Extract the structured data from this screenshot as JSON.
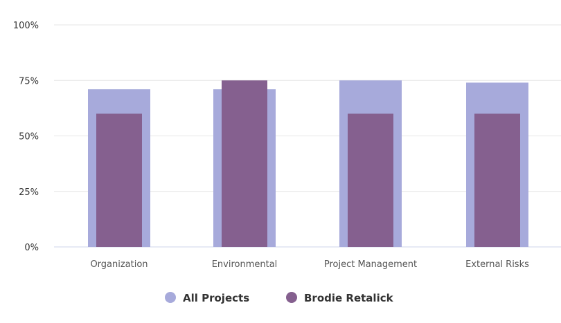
{
  "chart_data": {
    "type": "bar",
    "categories": [
      "Organization",
      "Environmental",
      "Project Management",
      "External Risks"
    ],
    "series": [
      {
        "name": "All Projects",
        "values": [
          71,
          71,
          75,
          74
        ],
        "color": "#a7aadb"
      },
      {
        "name": "Brodie Retalick",
        "values": [
          60,
          75,
          60,
          60
        ],
        "color": "#85608f"
      }
    ],
    "ylim": [
      0,
      100
    ],
    "yticks": [
      0,
      25,
      50,
      75,
      100
    ],
    "ytick_labels": [
      "0%",
      "25%",
      "50%",
      "75%",
      "100%"
    ],
    "title": "",
    "xlabel": "",
    "ylabel": "",
    "grid": true,
    "legend_position": "bottom-center",
    "grid_color": "#e6e6e6",
    "axis_color": "#ccd6eb"
  }
}
